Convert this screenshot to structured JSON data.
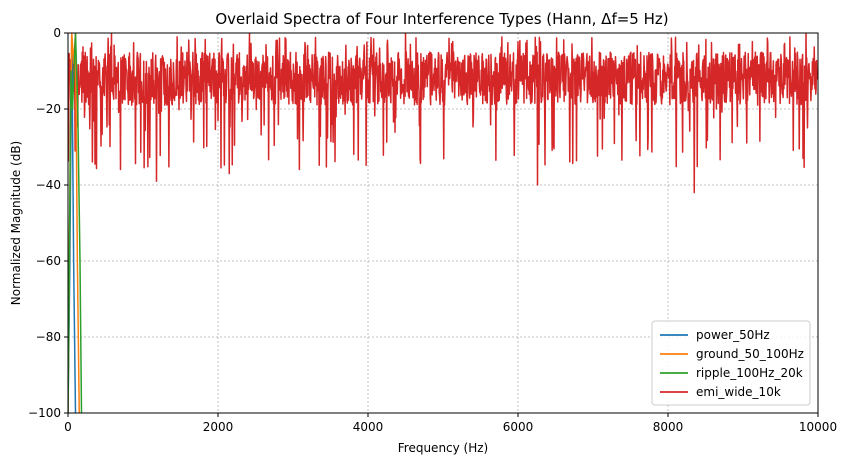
{
  "chart_data": {
    "type": "line",
    "title": "Overlaid Spectra of Four Interference Types (Hann, Δf=5 Hz)",
    "xlabel": "Frequency (Hz)",
    "ylabel": "Normalized Magnitude (dB)",
    "xlim": [
      0,
      10000
    ],
    "ylim": [
      -100,
      0
    ],
    "xticks": [
      0,
      2000,
      4000,
      6000,
      8000,
      10000
    ],
    "xtick_labels": [
      "0",
      "2000",
      "4000",
      "6000",
      "8000",
      "10000"
    ],
    "yticks": [
      0,
      -20,
      -40,
      -60,
      -80,
      -100
    ],
    "ytick_labels": [
      "0",
      "−20",
      "−40",
      "−60",
      "−80",
      "−100"
    ],
    "grid": true,
    "legend_position": "lower-right",
    "series": [
      {
        "name": "power_50Hz",
        "color": "#1f77b4",
        "x": [
          0,
          25,
          50,
          75,
          100
        ],
        "y": [
          -100,
          -60,
          0,
          -60,
          -100
        ]
      },
      {
        "name": "ground_50_100Hz",
        "color": "#ff7f0e",
        "x": [
          0,
          30,
          50,
          75,
          100,
          125,
          150
        ],
        "y": [
          -100,
          -30,
          0,
          -8,
          0,
          -60,
          -100
        ]
      },
      {
        "name": "ripple_100Hz_20k",
        "color": "#2ca02c",
        "x": [
          0,
          40,
          60,
          100,
          130,
          160,
          180
        ],
        "y": [
          -100,
          -10,
          -20,
          0,
          -20,
          -60,
          -100
        ]
      },
      {
        "name": "emi_wide_10k",
        "color": "#d62728",
        "x_range": [
          0,
          10000
        ],
        "y_range": [
          -42,
          0
        ],
        "typical_level": -12,
        "notable_dips": [
          {
            "x": 1180,
            "y": -39
          },
          {
            "x": 2150,
            "y": -37
          },
          {
            "x": 6260,
            "y": -40
          },
          {
            "x": 8350,
            "y": -42
          }
        ],
        "notable_peaks": [
          {
            "x": 580,
            "y": 0
          },
          {
            "x": 2420,
            "y": 0
          },
          {
            "x": 4500,
            "y": 0
          },
          {
            "x": 9840,
            "y": 0
          }
        ]
      }
    ]
  }
}
